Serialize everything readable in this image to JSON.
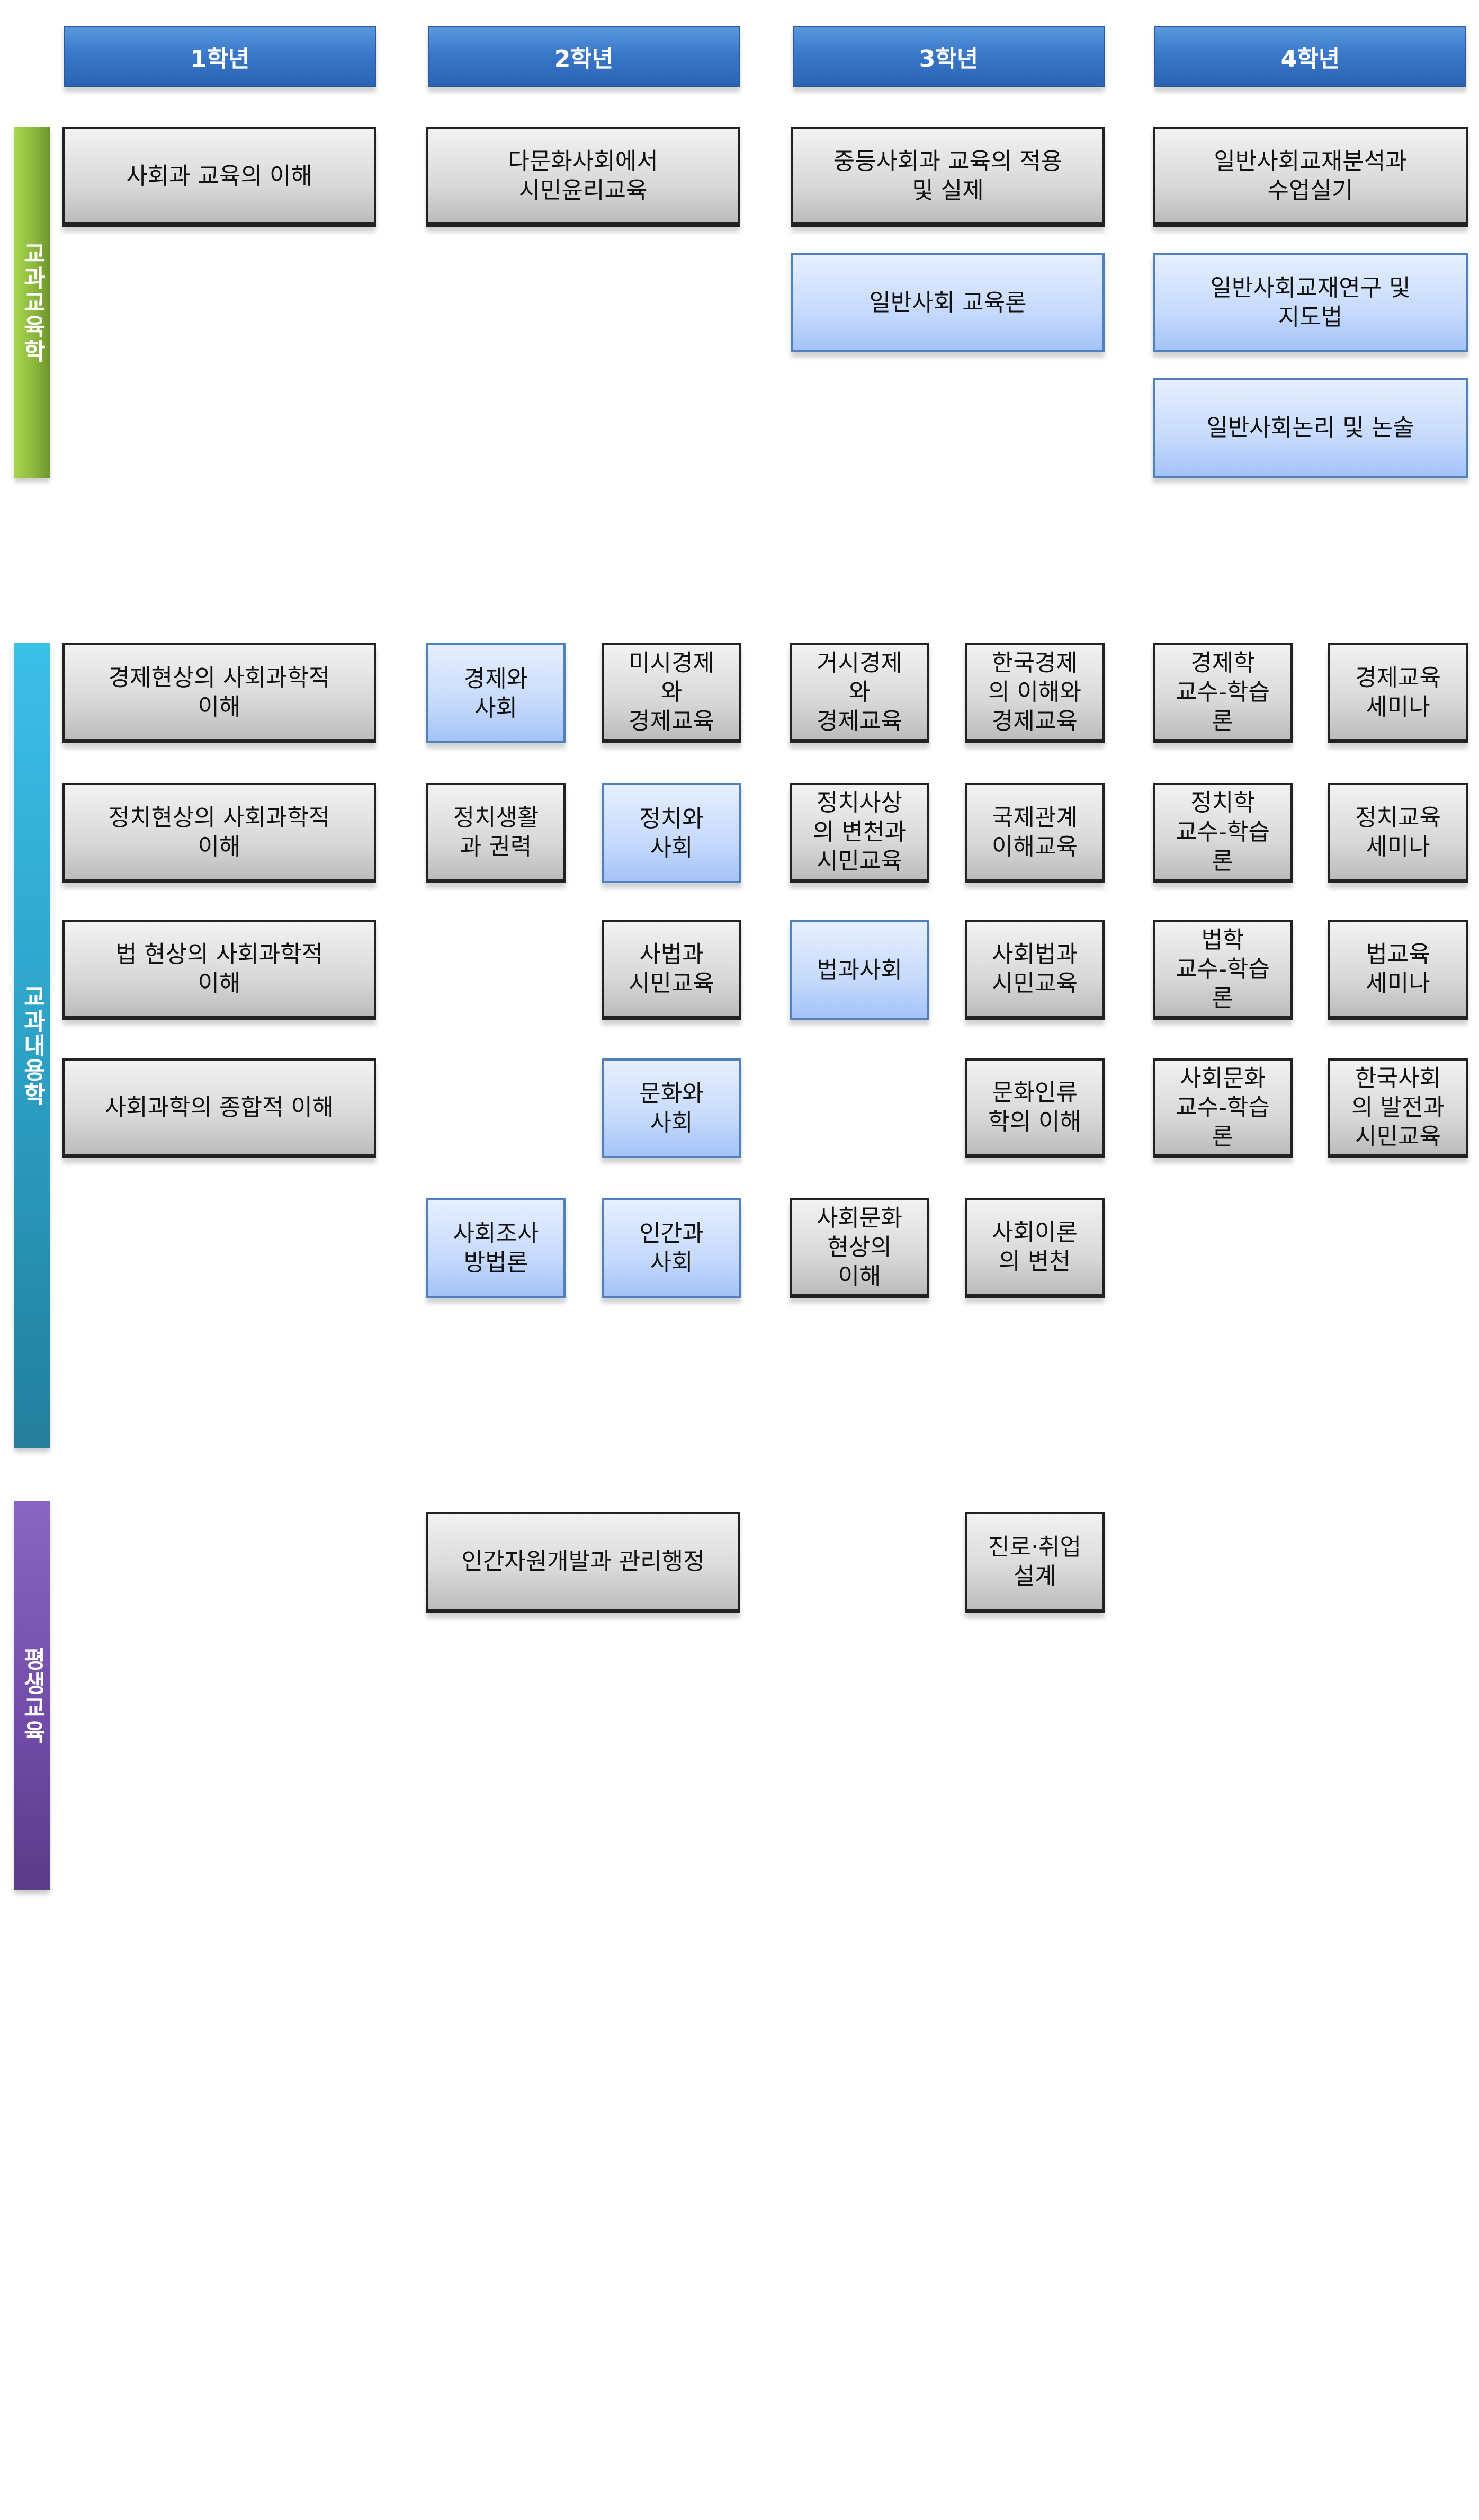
{
  "headers": [
    "1학년",
    "2학년",
    "3학년",
    "4학년"
  ],
  "sections": {
    "education": {
      "label": "교과교육학",
      "color": "#8ab53c",
      "courses": [
        {
          "text": "사회과 교육의 이해",
          "style": "gray"
        },
        {
          "text": "다문화사회에서\n시민윤리교육",
          "style": "gray"
        },
        {
          "text": "중등사회과 교육의 적용\n및 실제",
          "style": "gray"
        },
        {
          "text": "일반사회교재분석과\n수업실기",
          "style": "gray"
        },
        {
          "text": "일반사회 교육론",
          "style": "blue"
        },
        {
          "text": "일반사회교재연구 및\n지도법",
          "style": "blue"
        },
        {
          "text": "일반사회논리 및 논술",
          "style": "blue"
        }
      ]
    },
    "content": {
      "label": "교과내용학",
      "color": "#2a9bbf",
      "rows": [
        [
          {
            "text": "경제현상의 사회과학적\n이해",
            "style": "gray"
          },
          {
            "text": "경제와\n사회",
            "style": "blue"
          },
          {
            "text": "미시경제\n와\n경제교육",
            "style": "gray"
          },
          {
            "text": "거시경제\n와\n경제교육",
            "style": "gray"
          },
          {
            "text": "한국경제\n의 이해와\n경제교육",
            "style": "gray"
          },
          {
            "text": "경제학\n교수-학습\n론",
            "style": "gray"
          },
          {
            "text": "경제교육\n세미나",
            "style": "gray"
          }
        ],
        [
          {
            "text": "정치현상의 사회과학적\n이해",
            "style": "gray"
          },
          {
            "text": "정치생활\n과 권력",
            "style": "gray"
          },
          {
            "text": "정치와\n사회",
            "style": "blue"
          },
          {
            "text": "정치사상\n의 변천과\n시민교육",
            "style": "gray"
          },
          {
            "text": "국제관계\n이해교육",
            "style": "gray"
          },
          {
            "text": "정치학\n교수-학습\n론",
            "style": "gray"
          },
          {
            "text": "정치교육\n세미나",
            "style": "gray"
          }
        ],
        [
          {
            "text": "법 현상의 사회과학적\n이해",
            "style": "gray"
          },
          {
            "text": "사법과\n시민교육",
            "style": "gray"
          },
          {
            "text": "법과사회",
            "style": "blue"
          },
          {
            "text": "사회법과\n시민교육",
            "style": "gray"
          },
          {
            "text": "법학\n교수-학습\n론",
            "style": "gray"
          },
          {
            "text": "법교육\n세미나",
            "style": "gray"
          }
        ],
        [
          {
            "text": "사회과학의 종합적 이해",
            "style": "gray"
          },
          {
            "text": "문화와\n사회",
            "style": "blue"
          },
          {
            "text": "문화인류\n학의 이해",
            "style": "gray"
          },
          {
            "text": "사회문화\n교수-학습\n론",
            "style": "gray"
          },
          {
            "text": "한국사회\n의 발전과\n시민교육",
            "style": "gray"
          }
        ],
        [
          {
            "text": "사회조사\n방법론",
            "style": "blue"
          },
          {
            "text": "인간과\n사회",
            "style": "blue"
          },
          {
            "text": "사회문화\n현상의\n이해",
            "style": "gray"
          },
          {
            "text": "사회이론\n의 변천",
            "style": "gray"
          }
        ]
      ]
    },
    "lifelong": {
      "label": "평생교육",
      "color": "#6f4ba6",
      "courses": [
        {
          "text": "인간자원개발과 관리행정",
          "style": "gray"
        },
        {
          "text": "진로·취업\n설계",
          "style": "gray"
        }
      ]
    }
  },
  "colors": {
    "header": "#3b78c9",
    "gray_box": "#d8d8d8",
    "blue_box": "#c6dafc",
    "blue_border": "#4f81bd"
  }
}
